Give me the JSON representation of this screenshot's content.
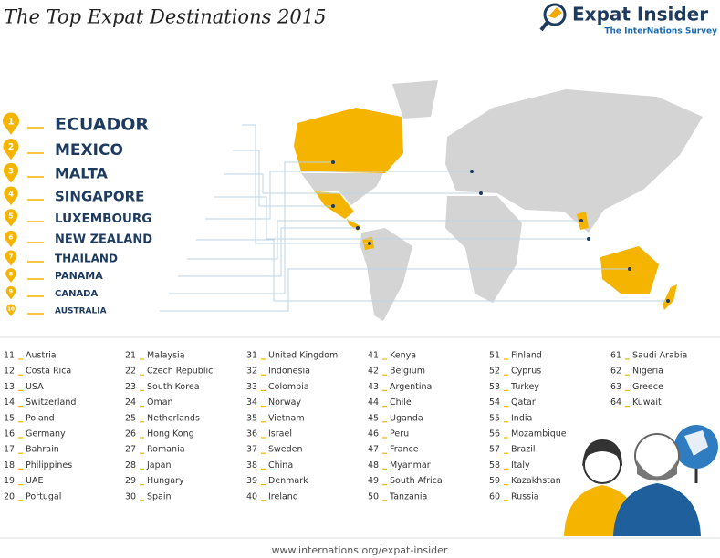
{
  "header": {
    "title": "The Top Expat Destinations 2015",
    "logo": "Expat Insider",
    "logo_subtitle": "The InterNations Survey"
  },
  "top_ten": [
    {
      "rank": 1,
      "name": "ECUADOR"
    },
    {
      "rank": 2,
      "name": "MEXICO"
    },
    {
      "rank": 3,
      "name": "MALTA"
    },
    {
      "rank": 4,
      "name": "SINGAPORE"
    },
    {
      "rank": 5,
      "name": "LUXEMBOURG"
    },
    {
      "rank": 6,
      "name": "NEW ZEALAND"
    },
    {
      "rank": 7,
      "name": "THAILAND"
    },
    {
      "rank": 8,
      "name": "PANAMA"
    },
    {
      "rank": 9,
      "name": "CANADA"
    },
    {
      "rank": 10,
      "name": "AUSTRALIA"
    }
  ],
  "ranking": [
    {
      "rank": 11,
      "name": "Austria"
    },
    {
      "rank": 12,
      "name": "Costa Rica"
    },
    {
      "rank": 13,
      "name": "USA"
    },
    {
      "rank": 14,
      "name": "Switzerland"
    },
    {
      "rank": 15,
      "name": "Poland"
    },
    {
      "rank": 16,
      "name": "Germany"
    },
    {
      "rank": 17,
      "name": "Bahrain"
    },
    {
      "rank": 18,
      "name": "Philippines"
    },
    {
      "rank": 19,
      "name": "UAE"
    },
    {
      "rank": 20,
      "name": "Portugal"
    },
    {
      "rank": 21,
      "name": "Malaysia"
    },
    {
      "rank": 22,
      "name": "Czech Republic"
    },
    {
      "rank": 23,
      "name": "South Korea"
    },
    {
      "rank": 24,
      "name": "Oman"
    },
    {
      "rank": 25,
      "name": "Netherlands"
    },
    {
      "rank": 26,
      "name": "Hong Kong"
    },
    {
      "rank": 27,
      "name": "Romania"
    },
    {
      "rank": 28,
      "name": "Japan"
    },
    {
      "rank": 29,
      "name": "Hungary"
    },
    {
      "rank": 30,
      "name": "Spain"
    },
    {
      "rank": 31,
      "name": "United Kingdom"
    },
    {
      "rank": 32,
      "name": "Indonesia"
    },
    {
      "rank": 33,
      "name": "Colombia"
    },
    {
      "rank": 34,
      "name": "Norway"
    },
    {
      "rank": 35,
      "name": "Vietnam"
    },
    {
      "rank": 36,
      "name": "Israel"
    },
    {
      "rank": 37,
      "name": "Sweden"
    },
    {
      "rank": 38,
      "name": "China"
    },
    {
      "rank": 39,
      "name": "Denmark"
    },
    {
      "rank": 40,
      "name": "Ireland"
    },
    {
      "rank": 41,
      "name": "Kenya"
    },
    {
      "rank": 42,
      "name": "Belgium"
    },
    {
      "rank": 43,
      "name": "Argentina"
    },
    {
      "rank": 44,
      "name": "Chile"
    },
    {
      "rank": 45,
      "name": "Uganda"
    },
    {
      "rank": 46,
      "name": "Peru"
    },
    {
      "rank": 47,
      "name": "France"
    },
    {
      "rank": 48,
      "name": "Myanmar"
    },
    {
      "rank": 49,
      "name": "South Africa"
    },
    {
      "rank": 50,
      "name": "Tanzania"
    },
    {
      "rank": 51,
      "name": "Finland"
    },
    {
      "rank": 52,
      "name": "Cyprus"
    },
    {
      "rank": 53,
      "name": "Turkey"
    },
    {
      "rank": 54,
      "name": "Qatar"
    },
    {
      "rank": 55,
      "name": "India"
    },
    {
      "rank": 56,
      "name": "Mozambique"
    },
    {
      "rank": 57,
      "name": "Brazil"
    },
    {
      "rank": 58,
      "name": "Italy"
    },
    {
      "rank": 59,
      "name": "Kazakhstan"
    },
    {
      "rank": 60,
      "name": "Russia"
    },
    {
      "rank": 61,
      "name": "Saudi Arabia"
    },
    {
      "rank": 62,
      "name": "Nigeria"
    },
    {
      "rank": 63,
      "name": "Greece"
    },
    {
      "rank": 64,
      "name": "Kuwait"
    }
  ],
  "footer": "www.internations.org/expat-insider"
}
